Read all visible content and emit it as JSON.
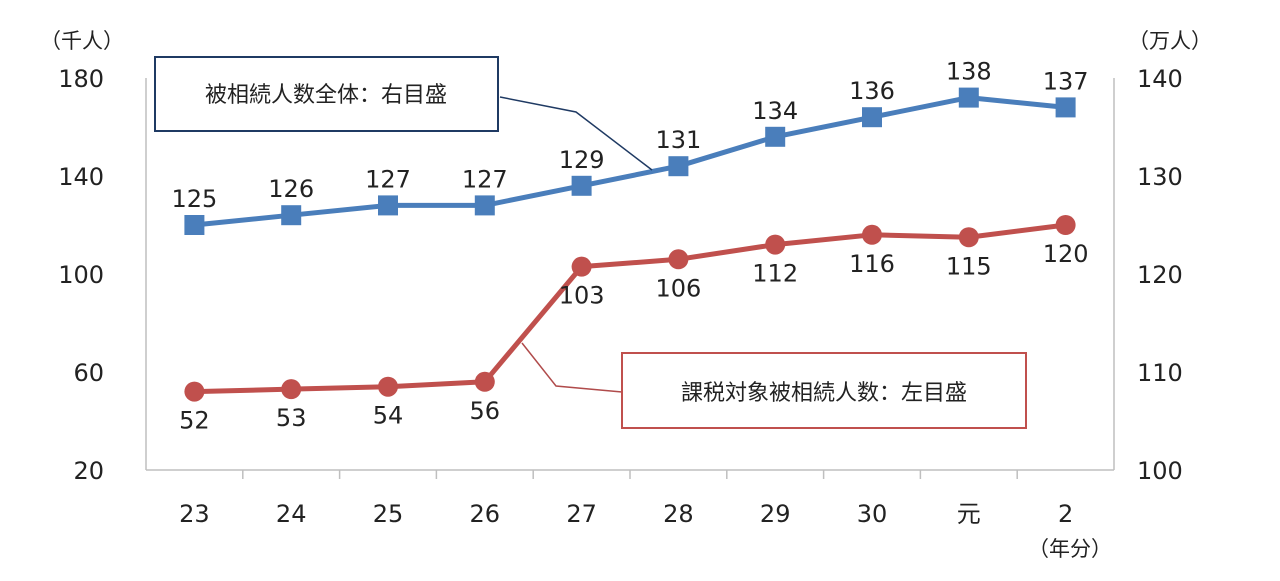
{
  "chart_data": {
    "type": "line",
    "categories": [
      "23",
      "24",
      "25",
      "26",
      "27",
      "28",
      "29",
      "30",
      "元",
      "2"
    ],
    "x_unit": "（年分）",
    "y_left": {
      "unit": "（千人）",
      "ylim": [
        20,
        180
      ],
      "ticks": [
        20,
        60,
        100,
        140,
        180
      ]
    },
    "y_right": {
      "unit": "（万人）",
      "ylim": [
        100,
        140
      ],
      "ticks": [
        100,
        110,
        120,
        130,
        140
      ]
    },
    "series": [
      {
        "name": "被相続人数全体：右目盛",
        "axis": "right",
        "marker": "square",
        "color": "#4a7ebb",
        "values": [
          125,
          126,
          127,
          127,
          129,
          131,
          134,
          136,
          138,
          137
        ],
        "labels": [
          "125",
          "126",
          "127",
          "127",
          "129",
          "131",
          "134",
          "136",
          "138",
          "137"
        ]
      },
      {
        "name": "課税対象被相続人数：左目盛",
        "axis": "left",
        "marker": "circle",
        "color": "#c0504d",
        "values": [
          52,
          53,
          54,
          56,
          103,
          106,
          112,
          116,
          115,
          120
        ],
        "labels": [
          "52",
          "53",
          "54",
          "56",
          "103",
          "106",
          "112",
          "116",
          "115",
          "120"
        ]
      }
    ],
    "grid": false,
    "legend": "callouts"
  }
}
